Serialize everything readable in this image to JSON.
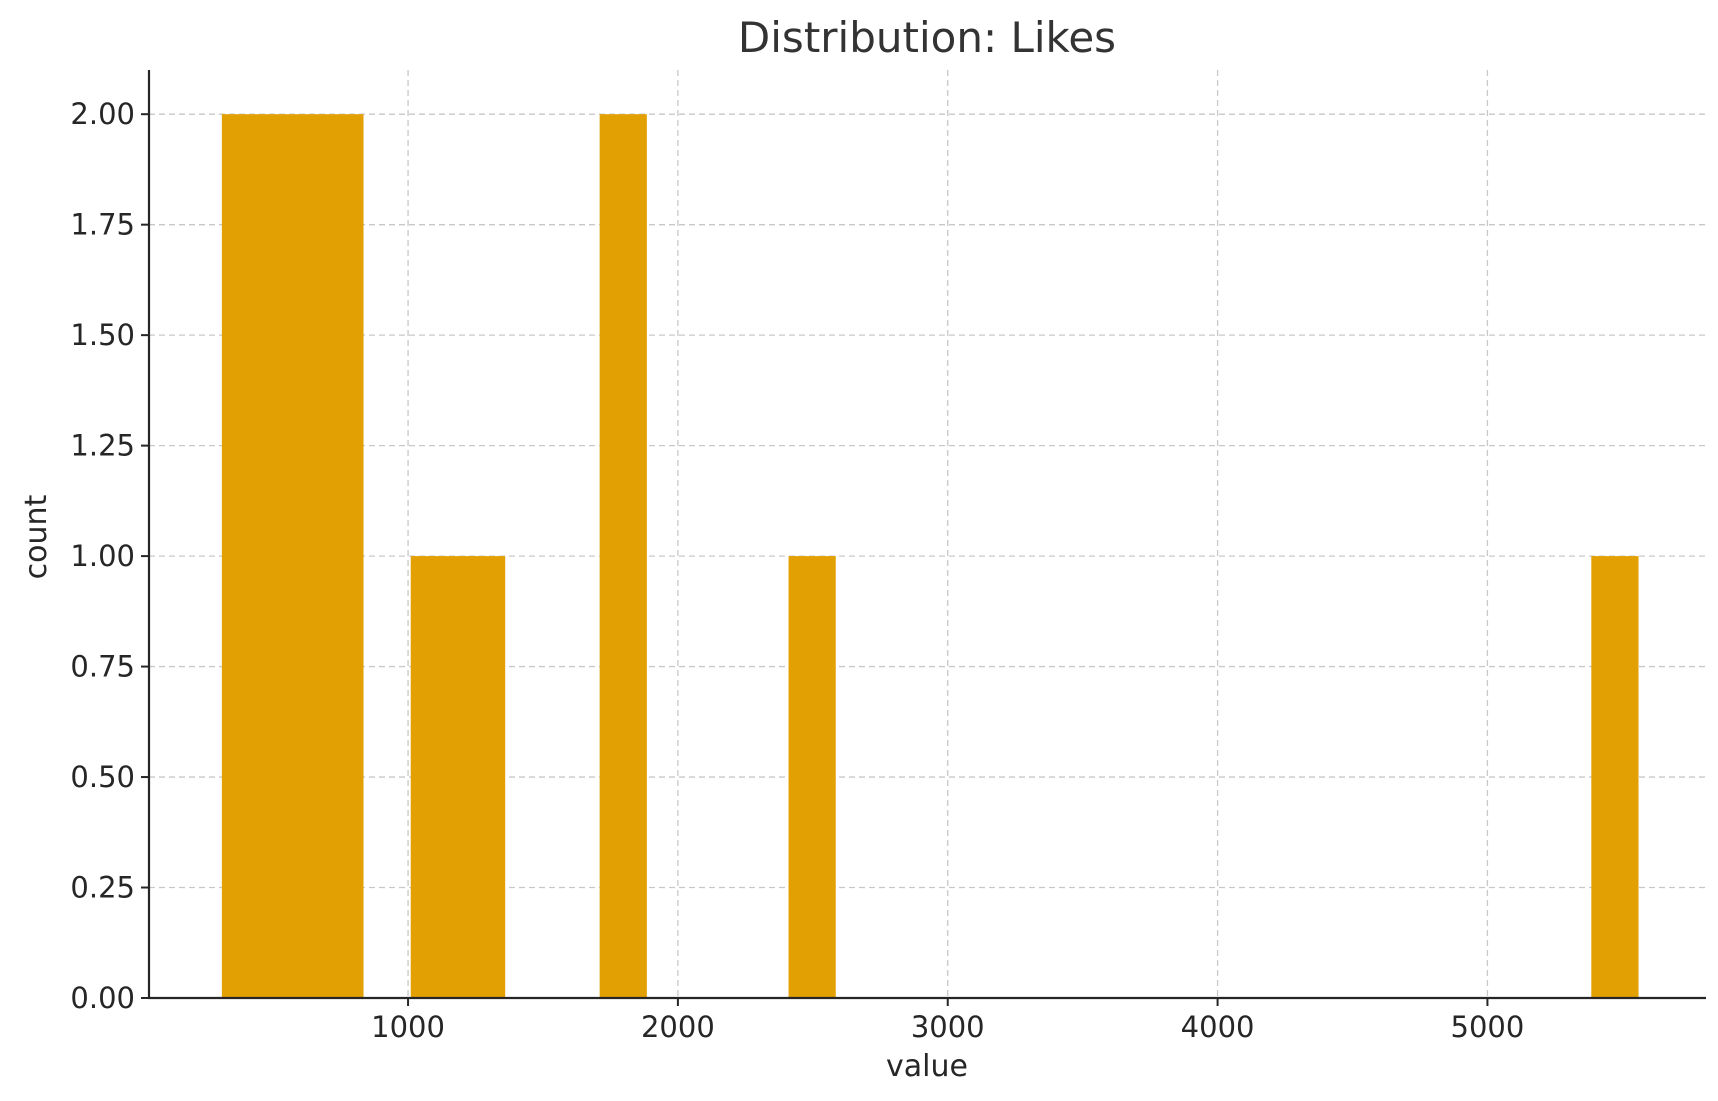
{
  "chart_data": {
    "type": "bar",
    "title": "Distribution: Likes",
    "xlabel": "value",
    "ylabel": "count",
    "xlim": [
      40,
      5810
    ],
    "ylim": [
      0,
      2.1
    ],
    "xticks": [
      1000,
      2000,
      3000,
      4000,
      5000
    ],
    "yticks": [
      0,
      0.25,
      0.5,
      0.75,
      1.0,
      1.25,
      1.5,
      1.75,
      2.0
    ],
    "ytick_labels": [
      "0.00",
      "0.25",
      "0.50",
      "0.75",
      "1.00",
      "1.25",
      "1.50",
      "1.75",
      "2.00"
    ],
    "grid": true,
    "bar_color": "#E3A003",
    "bins": [
      {
        "x0": 310,
        "x1": 835,
        "count": 2
      },
      {
        "x0": 1010,
        "x1": 1360,
        "count": 1
      },
      {
        "x0": 1710,
        "x1": 1885,
        "count": 2
      },
      {
        "x0": 2410,
        "x1": 2585,
        "count": 1
      },
      {
        "x0": 5385,
        "x1": 5560,
        "count": 1
      }
    ]
  }
}
